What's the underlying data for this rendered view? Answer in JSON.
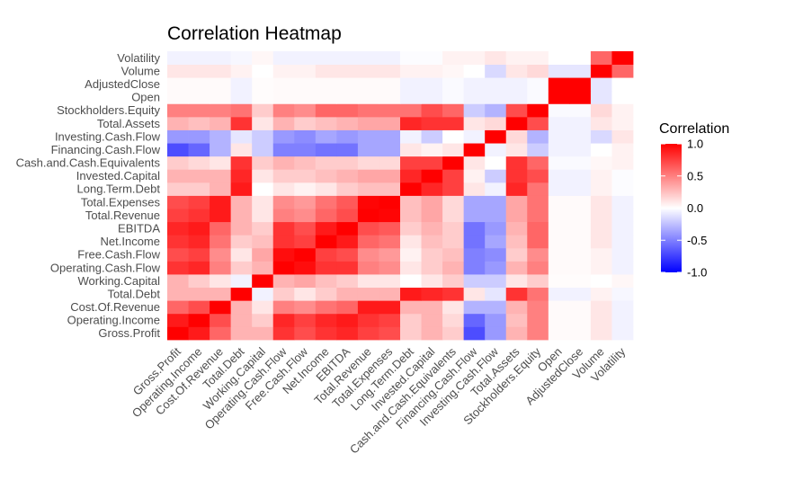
{
  "chart_data": {
    "type": "heatmap",
    "title": "Correlation Heatmap",
    "xlabel": "",
    "ylabel": "",
    "variables": [
      "Gross.Profit",
      "Operating.Income",
      "Cost.Of.Revenue",
      "Total.Debt",
      "Working.Capital",
      "Operating.Cash.Flow",
      "Free.Cash.Flow",
      "Net.Income",
      "EBITDA",
      "Total.Revenue",
      "Total.Expenses",
      "Long.Term.Debt",
      "Invested.Capital",
      "Cash.and.Cash.Equivalents",
      "Financing.Cash.Flow",
      "Investing.Cash.Flow",
      "Total.Assets",
      "Stockholders.Equity",
      "Open",
      "AdjustedClose",
      "Volume",
      "Volatility"
    ],
    "matrix": [
      [
        1.0,
        0.9,
        0.6,
        0.3,
        0.3,
        0.8,
        0.7,
        0.8,
        0.85,
        0.75,
        0.7,
        0.2,
        0.3,
        0.2,
        -0.7,
        -0.4,
        0.3,
        0.5,
        0.02,
        0.02,
        0.1,
        -0.05
      ],
      [
        0.9,
        1.0,
        0.7,
        0.3,
        0.2,
        0.85,
        0.75,
        0.85,
        0.9,
        0.8,
        0.75,
        0.2,
        0.3,
        0.15,
        -0.6,
        -0.4,
        0.25,
        0.5,
        0.02,
        0.02,
        0.1,
        -0.05
      ],
      [
        0.6,
        0.7,
        1.0,
        0.3,
        0.1,
        0.5,
        0.45,
        0.55,
        0.6,
        0.9,
        0.9,
        0.3,
        0.3,
        0.1,
        -0.3,
        -0.3,
        0.3,
        0.5,
        0.02,
        0.02,
        0.1,
        -0.05
      ],
      [
        0.3,
        0.3,
        0.3,
        1.0,
        -0.05,
        0.2,
        0.1,
        0.2,
        0.3,
        0.3,
        0.3,
        0.9,
        0.85,
        0.8,
        0.1,
        -0.1,
        0.8,
        0.55,
        -0.05,
        -0.05,
        0.05,
        -0.03
      ],
      [
        0.3,
        0.2,
        0.1,
        -0.05,
        1.0,
        0.3,
        0.35,
        0.25,
        0.2,
        0.1,
        0.1,
        0.0,
        0.1,
        0.2,
        -0.2,
        -0.2,
        0.1,
        0.2,
        0.01,
        0.01,
        0.0,
        0.03
      ],
      [
        0.8,
        0.85,
        0.5,
        0.2,
        0.3,
        1.0,
        0.95,
        0.8,
        0.8,
        0.5,
        0.45,
        0.1,
        0.2,
        0.3,
        -0.5,
        -0.4,
        0.3,
        0.5,
        0.02,
        0.02,
        0.05,
        -0.05
      ],
      [
        0.7,
        0.75,
        0.45,
        0.1,
        0.35,
        0.95,
        1.0,
        0.75,
        0.7,
        0.45,
        0.4,
        0.05,
        0.2,
        0.25,
        -0.5,
        -0.45,
        0.2,
        0.45,
        0.02,
        0.02,
        0.05,
        -0.05
      ],
      [
        0.8,
        0.85,
        0.55,
        0.2,
        0.25,
        0.8,
        0.75,
        1.0,
        0.9,
        0.6,
        0.55,
        0.1,
        0.25,
        0.2,
        -0.55,
        -0.35,
        0.25,
        0.6,
        0.02,
        0.02,
        0.1,
        -0.05
      ],
      [
        0.85,
        0.9,
        0.6,
        0.3,
        0.2,
        0.8,
        0.7,
        0.9,
        1.0,
        0.7,
        0.65,
        0.2,
        0.3,
        0.2,
        -0.55,
        -0.4,
        0.3,
        0.6,
        0.02,
        0.02,
        0.1,
        -0.05
      ],
      [
        0.75,
        0.8,
        0.9,
        0.3,
        0.1,
        0.5,
        0.45,
        0.6,
        0.7,
        1.0,
        0.98,
        0.25,
        0.35,
        0.15,
        -0.35,
        -0.35,
        0.35,
        0.55,
        0.02,
        0.02,
        0.1,
        -0.05
      ],
      [
        0.7,
        0.75,
        0.9,
        0.3,
        0.1,
        0.45,
        0.4,
        0.55,
        0.65,
        0.98,
        1.0,
        0.25,
        0.35,
        0.15,
        -0.35,
        -0.35,
        0.35,
        0.55,
        0.02,
        0.02,
        0.1,
        -0.05
      ],
      [
        0.2,
        0.2,
        0.3,
        0.9,
        0.0,
        0.1,
        0.05,
        0.1,
        0.2,
        0.25,
        0.25,
        1.0,
        0.85,
        0.75,
        0.1,
        -0.05,
        0.85,
        0.55,
        -0.05,
        -0.05,
        0.05,
        -0.01
      ],
      [
        0.3,
        0.3,
        0.3,
        0.85,
        0.1,
        0.2,
        0.2,
        0.25,
        0.3,
        0.35,
        0.35,
        0.85,
        1.0,
        0.75,
        0.05,
        -0.2,
        0.8,
        0.7,
        -0.05,
        -0.05,
        0.05,
        -0.01
      ],
      [
        0.2,
        0.15,
        0.1,
        0.8,
        0.2,
        0.3,
        0.25,
        0.2,
        0.2,
        0.15,
        0.15,
        0.75,
        0.75,
        1.0,
        0.1,
        0.0,
        0.8,
        0.6,
        -0.02,
        -0.02,
        0.03,
        0.05
      ],
      [
        -0.7,
        -0.6,
        -0.3,
        0.1,
        -0.2,
        -0.5,
        -0.5,
        -0.55,
        -0.55,
        -0.35,
        -0.35,
        0.1,
        0.05,
        0.1,
        1.0,
        -0.05,
        0.1,
        -0.2,
        -0.05,
        -0.05,
        0.0,
        0.05
      ],
      [
        -0.4,
        -0.4,
        -0.3,
        -0.1,
        -0.2,
        -0.4,
        -0.45,
        -0.35,
        -0.4,
        -0.35,
        -0.35,
        -0.05,
        -0.2,
        0.0,
        -0.05,
        1.0,
        0.15,
        -0.3,
        -0.05,
        -0.05,
        -0.15,
        0.1
      ],
      [
        0.3,
        0.25,
        0.3,
        0.8,
        0.1,
        0.3,
        0.2,
        0.25,
        0.3,
        0.35,
        0.35,
        0.85,
        0.8,
        0.8,
        0.1,
        0.15,
        1.0,
        0.7,
        -0.05,
        -0.05,
        0.1,
        0.05
      ],
      [
        0.5,
        0.5,
        0.5,
        0.55,
        0.2,
        0.5,
        0.45,
        0.6,
        0.6,
        0.55,
        0.55,
        0.55,
        0.7,
        0.6,
        -0.2,
        -0.3,
        0.7,
        1.0,
        -0.02,
        -0.02,
        0.15,
        0.05
      ],
      [
        0.02,
        0.02,
        0.02,
        -0.05,
        0.01,
        0.02,
        0.02,
        0.02,
        0.02,
        0.02,
        0.02,
        -0.05,
        -0.05,
        -0.02,
        -0.05,
        -0.05,
        -0.05,
        -0.02,
        1.0,
        1.0,
        -0.1,
        0.0
      ],
      [
        0.02,
        0.02,
        0.02,
        -0.05,
        0.01,
        0.02,
        0.02,
        0.02,
        0.02,
        0.02,
        0.02,
        -0.05,
        -0.05,
        -0.02,
        -0.05,
        -0.05,
        -0.05,
        -0.02,
        1.0,
        1.0,
        -0.1,
        0.0
      ],
      [
        0.1,
        0.1,
        0.1,
        0.05,
        0.0,
        0.05,
        0.05,
        0.1,
        0.1,
        0.1,
        0.1,
        0.05,
        0.05,
        0.03,
        0.0,
        -0.15,
        0.1,
        0.15,
        -0.1,
        -0.1,
        1.0,
        0.6
      ],
      [
        -0.05,
        -0.05,
        -0.05,
        -0.03,
        0.03,
        -0.05,
        -0.05,
        -0.05,
        -0.05,
        -0.05,
        -0.05,
        -0.01,
        -0.01,
        0.05,
        0.05,
        0.1,
        0.05,
        0.05,
        0.0,
        0.0,
        0.6,
        1.0
      ]
    ],
    "legend": {
      "title": "Correlation",
      "ticks": [
        "1.0",
        "0.5",
        "0.0",
        "-0.5",
        "-1.0"
      ],
      "tick_values": [
        1.0,
        0.5,
        0.0,
        -0.5,
        -1.0
      ],
      "placement": "right"
    },
    "color_scale": {
      "low": "#0000FF",
      "mid": "#FFFFFF",
      "high": "#FF0000"
    },
    "zlim": [
      -1,
      1
    ]
  }
}
